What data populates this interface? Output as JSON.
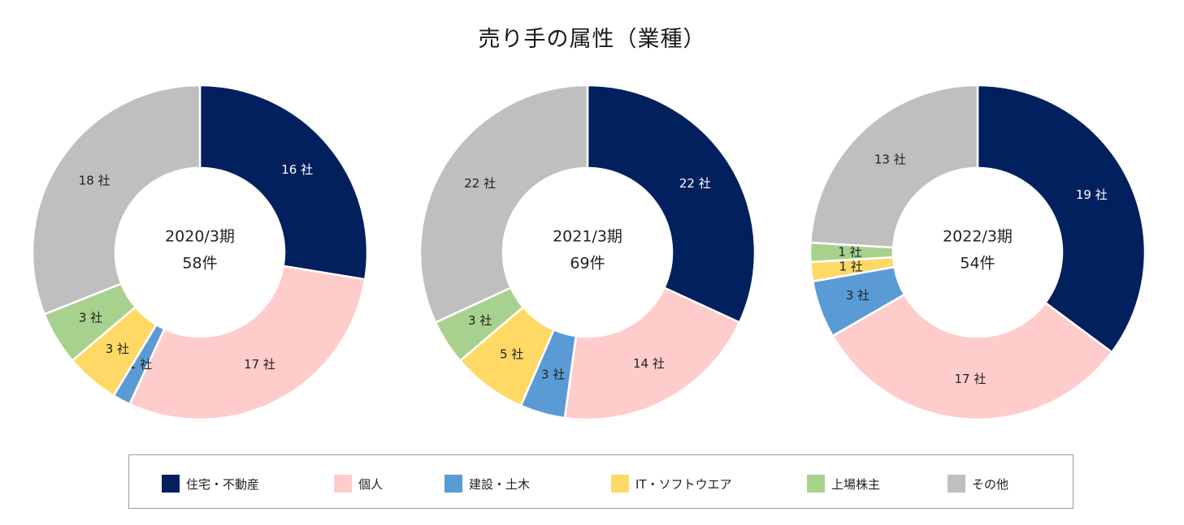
{
  "title": "売り手の属性（業種）",
  "legend": [
    {
      "name": "住宅・不動産",
      "color": "#021F5E"
    },
    {
      "name": "個人",
      "color": "#FFCCCC"
    },
    {
      "name": "建設・土木",
      "color": "#5B9BD5"
    },
    {
      "name": "IT・ソフトウエア",
      "color": "#FFD966"
    },
    {
      "name": "上場株主",
      "color": "#A9D18E"
    },
    {
      "name": "その他",
      "color": "#BFBFBF"
    }
  ],
  "chart_data": [
    {
      "type": "pie",
      "title": "2020/3期",
      "total_label": "58件",
      "categories": [
        "住宅・不動産",
        "個人",
        "建設・土木",
        "IT・ソフトウエア",
        "上場株主",
        "その他"
      ],
      "values": [
        16,
        17,
        1,
        3,
        3,
        18
      ],
      "labels": [
        "16 社",
        "17 社",
        "1 社",
        "3 社",
        "3 社",
        "18 社"
      ]
    },
    {
      "type": "pie",
      "title": "2021/3期",
      "total_label": "69件",
      "categories": [
        "住宅・不動産",
        "個人",
        "建設・土木",
        "IT・ソフトウエア",
        "上場株主",
        "その他"
      ],
      "values": [
        22,
        14,
        3,
        5,
        3,
        22
      ],
      "labels": [
        "22 社",
        "14 社",
        "3 社",
        "5 社",
        "3 社",
        "22 社"
      ]
    },
    {
      "type": "pie",
      "title": "2022/3期",
      "total_label": "54件",
      "categories": [
        "住宅・不動産",
        "個人",
        "建設・土木",
        "IT・ソフトウエア",
        "上場株主",
        "その他"
      ],
      "values": [
        19,
        17,
        3,
        1,
        1,
        13
      ],
      "labels": [
        "19 社",
        "17 社",
        "3 社",
        "1 社",
        "1 社",
        "13 社"
      ]
    }
  ]
}
